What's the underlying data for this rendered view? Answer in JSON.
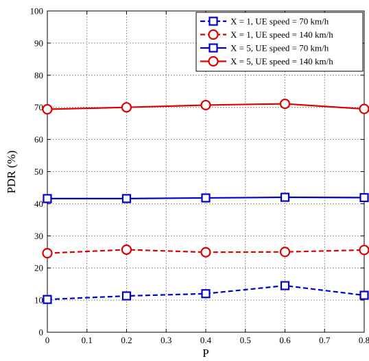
{
  "chart_data": {
    "type": "line",
    "title": "",
    "xlabel": "P",
    "ylabel": "PDR (%)",
    "xlim": [
      0,
      0.8
    ],
    "ylim": [
      0,
      100
    ],
    "xticks": [
      0,
      0.1,
      0.2,
      0.3,
      0.4,
      0.5,
      0.6,
      0.7,
      0.8
    ],
    "xtick_labels": [
      "0",
      "0.1",
      "0.2",
      "0.3",
      "0.4",
      "0.5",
      "0.6",
      "0.7",
      "0.8"
    ],
    "yticks": [
      0,
      10,
      20,
      30,
      40,
      50,
      60,
      70,
      80,
      90,
      100
    ],
    "ytick_labels": [
      "0",
      "10",
      "20",
      "30",
      "40",
      "50",
      "60",
      "70",
      "80",
      "90",
      "100"
    ],
    "grid": true,
    "legend_position": "top-right",
    "x": [
      0,
      0.2,
      0.4,
      0.6,
      0.8
    ],
    "series": [
      {
        "name": "X = 1, UE speed = 70 km/h",
        "values": [
          10.2,
          11.3,
          12.0,
          14.5,
          11.5
        ],
        "color": "#0000cc",
        "dashed": true,
        "marker": "square"
      },
      {
        "name": "X = 1, UE speed = 140 km/h",
        "values": [
          24.6,
          25.7,
          24.9,
          25.0,
          25.6
        ],
        "color": "#dd0000",
        "dashed": true,
        "marker": "circle"
      },
      {
        "name": "X = 5, UE speed = 70 km/h",
        "values": [
          41.6,
          41.6,
          41.8,
          42.0,
          41.9
        ],
        "color": "#0000cc",
        "dashed": false,
        "marker": "square"
      },
      {
        "name": "X = 5, UE speed = 140 km/h",
        "values": [
          69.4,
          70.0,
          70.7,
          71.1,
          69.5
        ],
        "color": "#dd0000",
        "dashed": false,
        "marker": "circle"
      }
    ]
  }
}
